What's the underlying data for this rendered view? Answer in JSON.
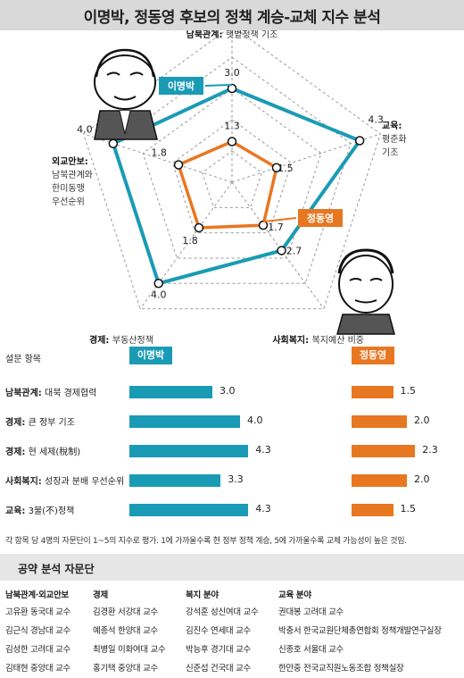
{
  "title": "이명박, 정동영 후보의 정책 계승-교체 지수 분석",
  "chart_data": [
    {
      "type": "radar",
      "axes": [
        {
          "title": "남북관계:",
          "desc": [
            "햇볕정책 기조"
          ]
        },
        {
          "title": "교육:",
          "desc": [
            "평준화",
            "기조"
          ]
        },
        {
          "title": "사회복지:",
          "desc": [
            "복지예산 비중"
          ]
        },
        {
          "title": "경제:",
          "desc": [
            "부동산정책"
          ]
        },
        {
          "title": "외교안보:",
          "desc": [
            "남북관계와",
            "한미동맹",
            "우선순위"
          ]
        }
      ],
      "range": [
        0,
        5
      ],
      "series": [
        {
          "name": "이명박",
          "color": "#1a9bb5",
          "values": [
            3.0,
            4.3,
            2.7,
            4.0,
            4.0
          ],
          "labels": [
            "3.0",
            "4.3",
            "2.7",
            "4.0",
            "4.0"
          ]
        },
        {
          "name": "정동영",
          "color": "#e87722",
          "values": [
            1.3,
            1.5,
            1.7,
            1.8,
            1.8
          ],
          "labels": [
            "1.3",
            "1.5",
            "1.7",
            "1.8",
            "1.8"
          ]
        }
      ]
    },
    {
      "type": "bar",
      "header": "설문 항목",
      "categories": [
        {
          "bold": "남북관계:",
          "rest": "대북 경제협력"
        },
        {
          "bold": "경제:",
          "rest": "큰 정부 기조"
        },
        {
          "bold": "경제:",
          "rest": "현 세제(稅制)"
        },
        {
          "bold": "사회복지:",
          "rest": "성장과 분배 우선순위"
        },
        {
          "bold": "교육:",
          "rest": "3불(不)정책"
        }
      ],
      "series": [
        {
          "name": "이명박",
          "color": "#1a9bb5",
          "values": [
            3.0,
            4.0,
            4.3,
            3.3,
            4.3
          ],
          "labels": [
            "3.0",
            "4.0",
            "4.3",
            "3.3",
            "4.3"
          ]
        },
        {
          "name": "정동영",
          "color": "#e87722",
          "values": [
            1.5,
            2.0,
            2.3,
            2.0,
            1.5
          ],
          "labels": [
            "1.5",
            "2.0",
            "2.3",
            "2.0",
            "1.5"
          ]
        }
      ]
    }
  ],
  "note": "각 항목 당 4명의 자문단이 1~5의 지수로 평가. 1에 가까울수록 현 정부 정책 계승, 5에 가까울수록 교체 가능성이 높은 것임.",
  "advisory": {
    "title": "공약 분석 자문단",
    "columns": [
      {
        "header": "남북관계·외교안보",
        "members": [
          "고유환 동국대 교수",
          "김근식 경남대 교수",
          "김성한 고려대 교수",
          "김태현 중앙대 교수"
        ]
      },
      {
        "header": "경제",
        "members": [
          "김경환 서강대 교수",
          "예종석 한양대 교수",
          "최병일 이화여대 교수",
          "홍기택 중앙대 교수"
        ]
      },
      {
        "header": "복지 분야",
        "members": [
          "강석훈 성신여대 교수",
          "김진수 연세대 교수",
          "박능후 경기대 교수",
          "신준섭 건국대 교수"
        ]
      },
      {
        "header": "교육 분야",
        "members": [
          "권대봉 고려대 교수",
          "박충서 한국교원단체총연합회 정책개발연구실장",
          "신종호 서울대 교수",
          "한만중 전국교직원노동조합 정책실장"
        ]
      }
    ]
  }
}
